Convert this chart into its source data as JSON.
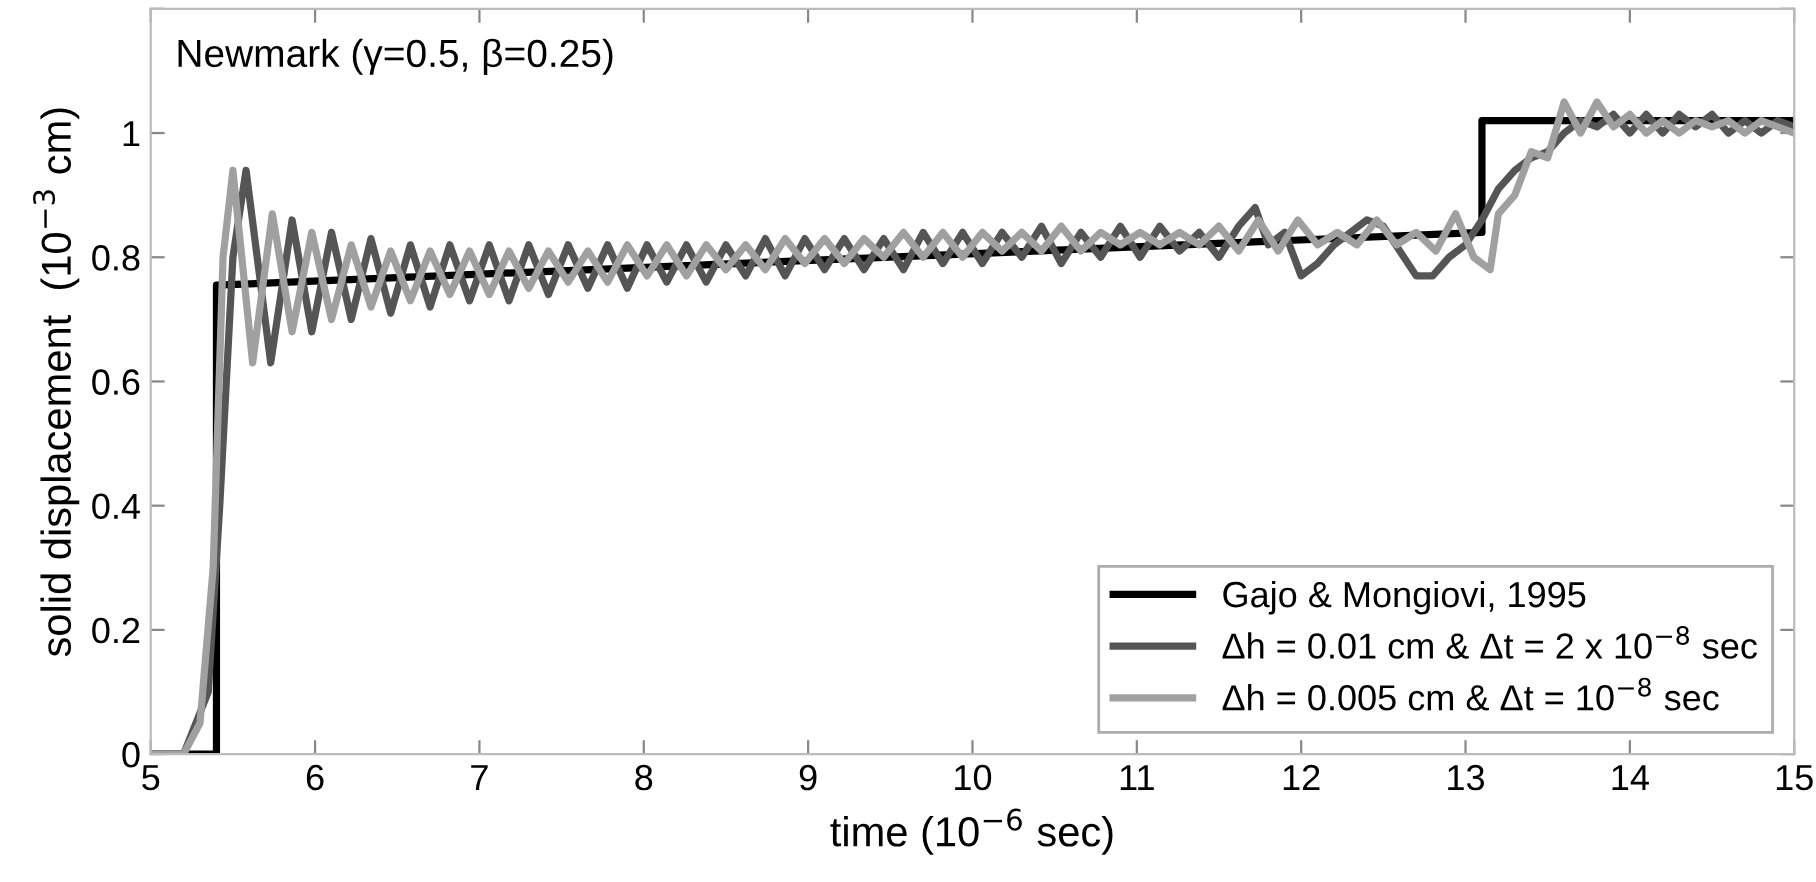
{
  "chart_data": {
    "type": "line",
    "xlabel": "time (10$^{−6}$ sec)",
    "ylabel": "solid displacement  (10$^{−3}$ cm)",
    "annotations": [
      "Newmark (γ=0.5, β=0.25)"
    ],
    "xlim": [
      5,
      15
    ],
    "ylim": [
      0,
      1.2
    ],
    "xticks": [
      5,
      6,
      7,
      8,
      9,
      10,
      11,
      12,
      13,
      14,
      15
    ],
    "yticks": [
      0,
      0.2,
      0.4,
      0.6,
      0.8,
      1,
      {
        "value": 1.2,
        "label": null
      }
    ],
    "grid": false,
    "legend": "bottom right",
    "marker": "none",
    "line_style": "solid",
    "series": [
      {
        "name": "Gajo & Mongiovi, 1995",
        "color": "#000000",
        "x": [
          5,
          5.4,
          5.4,
          13.1,
          13.1,
          15
        ],
        "values": [
          0,
          0,
          0.755,
          0.84,
          1.02,
          1.02
        ]
      },
      {
        "name": "Δh = 0.01 cm & Δt = 2 x 10$^{−8}$ sec",
        "color": "#555555",
        "x": [
          5,
          5.2,
          5.35,
          5.42,
          5.5,
          5.58,
          5.73,
          5.86,
          5.98,
          6.1,
          6.22,
          6.34,
          6.46,
          6.58,
          6.7,
          6.82,
          6.94,
          7.06,
          7.18,
          7.3,
          7.42,
          7.54,
          7.66,
          7.78,
          7.9,
          8.02,
          8.14,
          8.26,
          8.38,
          8.5,
          8.62,
          8.74,
          8.86,
          8.98,
          9.1,
          9.22,
          9.34,
          9.46,
          9.58,
          9.7,
          9.82,
          9.94,
          10.06,
          10.18,
          10.3,
          10.42,
          10.54,
          10.66,
          10.78,
          10.9,
          11.02,
          11.14,
          11.26,
          11.38,
          11.5,
          11.62,
          11.72,
          11.8,
          11.9,
          12.0,
          12.1,
          12.2,
          12.3,
          12.4,
          12.5,
          12.6,
          12.7,
          12.8,
          12.9,
          13.0,
          13.1,
          13.2,
          13.3,
          13.4,
          13.5,
          13.6,
          13.7,
          13.8,
          13.9,
          14.0,
          14.1,
          14.2,
          14.3,
          14.4,
          14.5,
          14.6,
          14.7,
          14.8,
          14.9,
          15.0
        ],
        "values": [
          0,
          0,
          0.1,
          0.4,
          0.8,
          0.94,
          0.63,
          0.86,
          0.68,
          0.84,
          0.7,
          0.83,
          0.71,
          0.82,
          0.72,
          0.82,
          0.73,
          0.82,
          0.73,
          0.82,
          0.74,
          0.82,
          0.75,
          0.82,
          0.75,
          0.82,
          0.76,
          0.82,
          0.76,
          0.82,
          0.77,
          0.83,
          0.77,
          0.83,
          0.78,
          0.83,
          0.78,
          0.83,
          0.78,
          0.84,
          0.79,
          0.84,
          0.79,
          0.84,
          0.8,
          0.85,
          0.79,
          0.84,
          0.8,
          0.85,
          0.8,
          0.85,
          0.81,
          0.84,
          0.8,
          0.85,
          0.88,
          0.82,
          0.84,
          0.77,
          0.79,
          0.82,
          0.84,
          0.86,
          0.85,
          0.81,
          0.77,
          0.77,
          0.8,
          0.82,
          0.86,
          0.91,
          0.94,
          0.96,
          0.97,
          1.0,
          1.02,
          1.01,
          1.03,
          1.0,
          1.03,
          1.0,
          1.03,
          1.01,
          1.03,
          1.0,
          1.02,
          1.0,
          1.02,
          1.01
        ]
      },
      {
        "name": "Δh = 0.005 cm & Δt = 10$^{−8}$ sec",
        "color": "#a0a0a0",
        "x": [
          5,
          5.2,
          5.3,
          5.38,
          5.44,
          5.5,
          5.62,
          5.74,
          5.86,
          5.98,
          6.1,
          6.22,
          6.34,
          6.46,
          6.58,
          6.7,
          6.82,
          6.94,
          7.06,
          7.18,
          7.3,
          7.42,
          7.54,
          7.66,
          7.78,
          7.9,
          8.02,
          8.14,
          8.26,
          8.38,
          8.5,
          8.62,
          8.74,
          8.86,
          8.98,
          9.1,
          9.22,
          9.34,
          9.46,
          9.58,
          9.7,
          9.82,
          9.94,
          10.06,
          10.18,
          10.3,
          10.42,
          10.54,
          10.66,
          10.78,
          10.9,
          11.02,
          11.14,
          11.26,
          11.38,
          11.5,
          11.62,
          11.74,
          11.86,
          11.98,
          12.1,
          12.22,
          12.34,
          12.46,
          12.58,
          12.7,
          12.82,
          12.94,
          13.05,
          13.15,
          13.2,
          13.3,
          13.4,
          13.5,
          13.6,
          13.7,
          13.8,
          13.9,
          14.0,
          14.1,
          14.2,
          14.3,
          14.4,
          14.5,
          14.6,
          14.7,
          14.8,
          14.9,
          15.0
        ],
        "values": [
          0,
          0,
          0.05,
          0.3,
          0.8,
          0.94,
          0.63,
          0.87,
          0.68,
          0.84,
          0.7,
          0.82,
          0.72,
          0.81,
          0.73,
          0.81,
          0.74,
          0.81,
          0.74,
          0.81,
          0.75,
          0.81,
          0.76,
          0.81,
          0.76,
          0.82,
          0.77,
          0.82,
          0.77,
          0.82,
          0.78,
          0.82,
          0.78,
          0.83,
          0.79,
          0.83,
          0.79,
          0.83,
          0.8,
          0.84,
          0.8,
          0.84,
          0.8,
          0.84,
          0.81,
          0.84,
          0.81,
          0.85,
          0.81,
          0.84,
          0.82,
          0.84,
          0.82,
          0.84,
          0.82,
          0.85,
          0.81,
          0.86,
          0.81,
          0.86,
          0.82,
          0.84,
          0.82,
          0.86,
          0.82,
          0.84,
          0.81,
          0.87,
          0.8,
          0.78,
          0.87,
          0.9,
          0.97,
          0.96,
          1.05,
          1.0,
          1.05,
          1.01,
          1.03,
          1.0,
          1.02,
          1.0,
          1.02,
          1.01,
          1.02,
          1.0,
          1.02,
          1.01,
          1.0
        ]
      }
    ]
  }
}
